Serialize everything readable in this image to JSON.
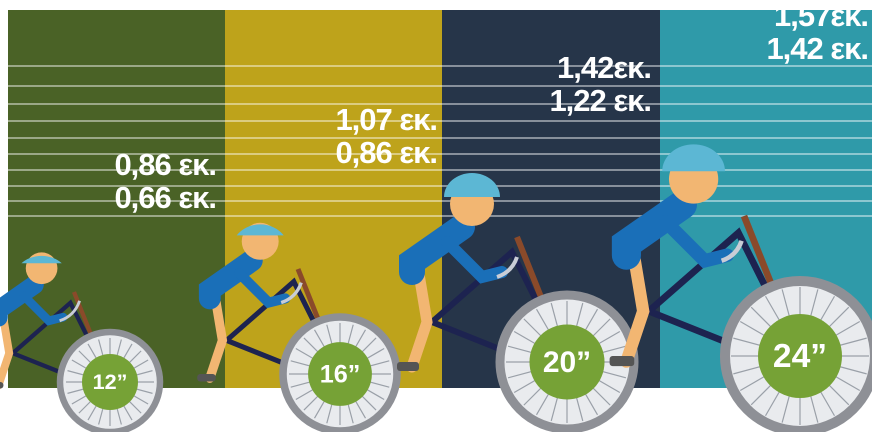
{
  "panels": [
    {
      "max_height": "0,86 εκ.",
      "min_height": "0,66 εκ.",
      "wheel_size": "12”"
    },
    {
      "max_height": "1,07 εκ.",
      "min_height": "0,86 εκ.",
      "wheel_size": "16”"
    },
    {
      "max_height": "1,42εκ.",
      "min_height": "1,22 εκ.",
      "wheel_size": "20”"
    },
    {
      "max_height": "1,57εκ.",
      "min_height": "1,42 εκ.",
      "wheel_size": "24”"
    }
  ]
}
